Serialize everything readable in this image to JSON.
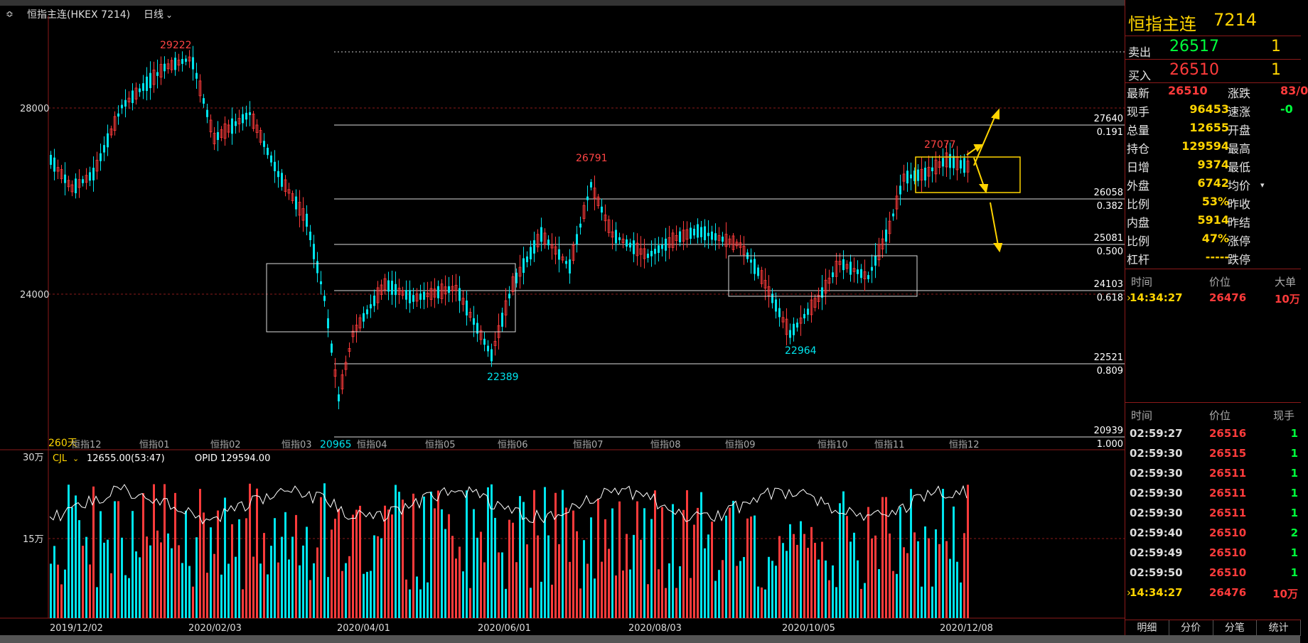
{
  "header": {
    "title": "恒指主连(HKEX 7214)",
    "period": "日线"
  },
  "price_axis": [
    "28000",
    "24000"
  ],
  "volume_axis": [
    "30万",
    "15万"
  ],
  "date_axis": [
    "2019/12/02",
    "2020/02/03",
    "2020/04/01",
    "2020/06/01",
    "2020/08/03",
    "2020/10/05",
    "2020/12/08"
  ],
  "month_labels": [
    "恒指12",
    "恒指01",
    "恒指02",
    "恒指03",
    "恒指04",
    "恒指05",
    "恒指06",
    "恒指07",
    "恒指08",
    "恒指09",
    "恒指10",
    "恒指11",
    "恒指12"
  ],
  "period_label": "260天",
  "fib_levels": [
    {
      "price": "27640",
      "ratio": "0.191"
    },
    {
      "price": "26058",
      "ratio": "0.382"
    },
    {
      "price": "25081",
      "ratio": "0.500"
    },
    {
      "price": "24103",
      "ratio": "0.618"
    },
    {
      "price": "22521",
      "ratio": "0.809"
    },
    {
      "price": "20939",
      "ratio": "1.000"
    }
  ],
  "annotations": {
    "high1": "29222",
    "high2": "26791",
    "high3": "27077",
    "low1": "22389",
    "low2": "22964",
    "low3": "20965"
  },
  "volume_info": {
    "indicator": "CJL",
    "value": "12655.00(53:47)",
    "opid": "OPID 129594.00"
  },
  "colors": {
    "up": "#ff3b3b",
    "down": "#00e5ee",
    "accent": "#ffd400",
    "grid": "#8b1a1a"
  },
  "panel": {
    "name": "恒指主连",
    "code": "7214",
    "ask_label": "卖出",
    "ask_price": "26517",
    "ask_qty": "1",
    "bid_label": "买入",
    "bid_price": "26510",
    "bid_qty": "1",
    "stats": [
      {
        "label": "最新",
        "value": "26510",
        "label2": "涨跌",
        "value2": "83/0"
      },
      {
        "label": "现手",
        "value": "96453",
        "label2": "速涨",
        "value2": "-0"
      },
      {
        "label": "总量",
        "value": "12655",
        "label2": "开盘",
        "value2": ""
      },
      {
        "label": "持仓",
        "value": "129594",
        "label2": "最高",
        "value2": ""
      },
      {
        "label": "日增",
        "value": "9374",
        "label2": "最低",
        "value2": ""
      },
      {
        "label": "外盘",
        "value": "6742",
        "label2": "均价",
        "value2": ""
      },
      {
        "label": "比例",
        "value": "53%",
        "label2": "昨收",
        "value2": ""
      },
      {
        "label": "内盘",
        "value": "5914",
        "label2": "昨结",
        "value2": ""
      },
      {
        "label": "比例",
        "value": "47%",
        "label2": "涨停",
        "value2": ""
      },
      {
        "label": "杠杆",
        "value": "-----",
        "label2": "跌停",
        "value2": ""
      }
    ],
    "big_header": {
      "time": "时间",
      "price": "价位",
      "big": "大单"
    },
    "big_rows": [
      {
        "time": "14:34:27",
        "price": "26476",
        "big": "10万"
      }
    ],
    "tick_header": {
      "time": "时间",
      "price": "价位",
      "qty": "现手"
    },
    "ticks": [
      {
        "time": "02:59:27",
        "price": "26516",
        "qty": "1"
      },
      {
        "time": "02:59:30",
        "price": "26515",
        "qty": "1"
      },
      {
        "time": "02:59:30",
        "price": "26511",
        "qty": "1"
      },
      {
        "time": "02:59:30",
        "price": "26511",
        "qty": "1"
      },
      {
        "time": "02:59:30",
        "price": "26511",
        "qty": "1"
      },
      {
        "time": "02:59:40",
        "price": "26510",
        "qty": "2"
      },
      {
        "time": "02:59:49",
        "price": "26510",
        "qty": "1"
      },
      {
        "time": "02:59:50",
        "price": "26510",
        "qty": "1"
      },
      {
        "time": "14:34:27",
        "price": "26476",
        "qty": "10万"
      }
    ],
    "tabs": [
      "明细",
      "分价",
      "分笔",
      "统计"
    ]
  }
}
